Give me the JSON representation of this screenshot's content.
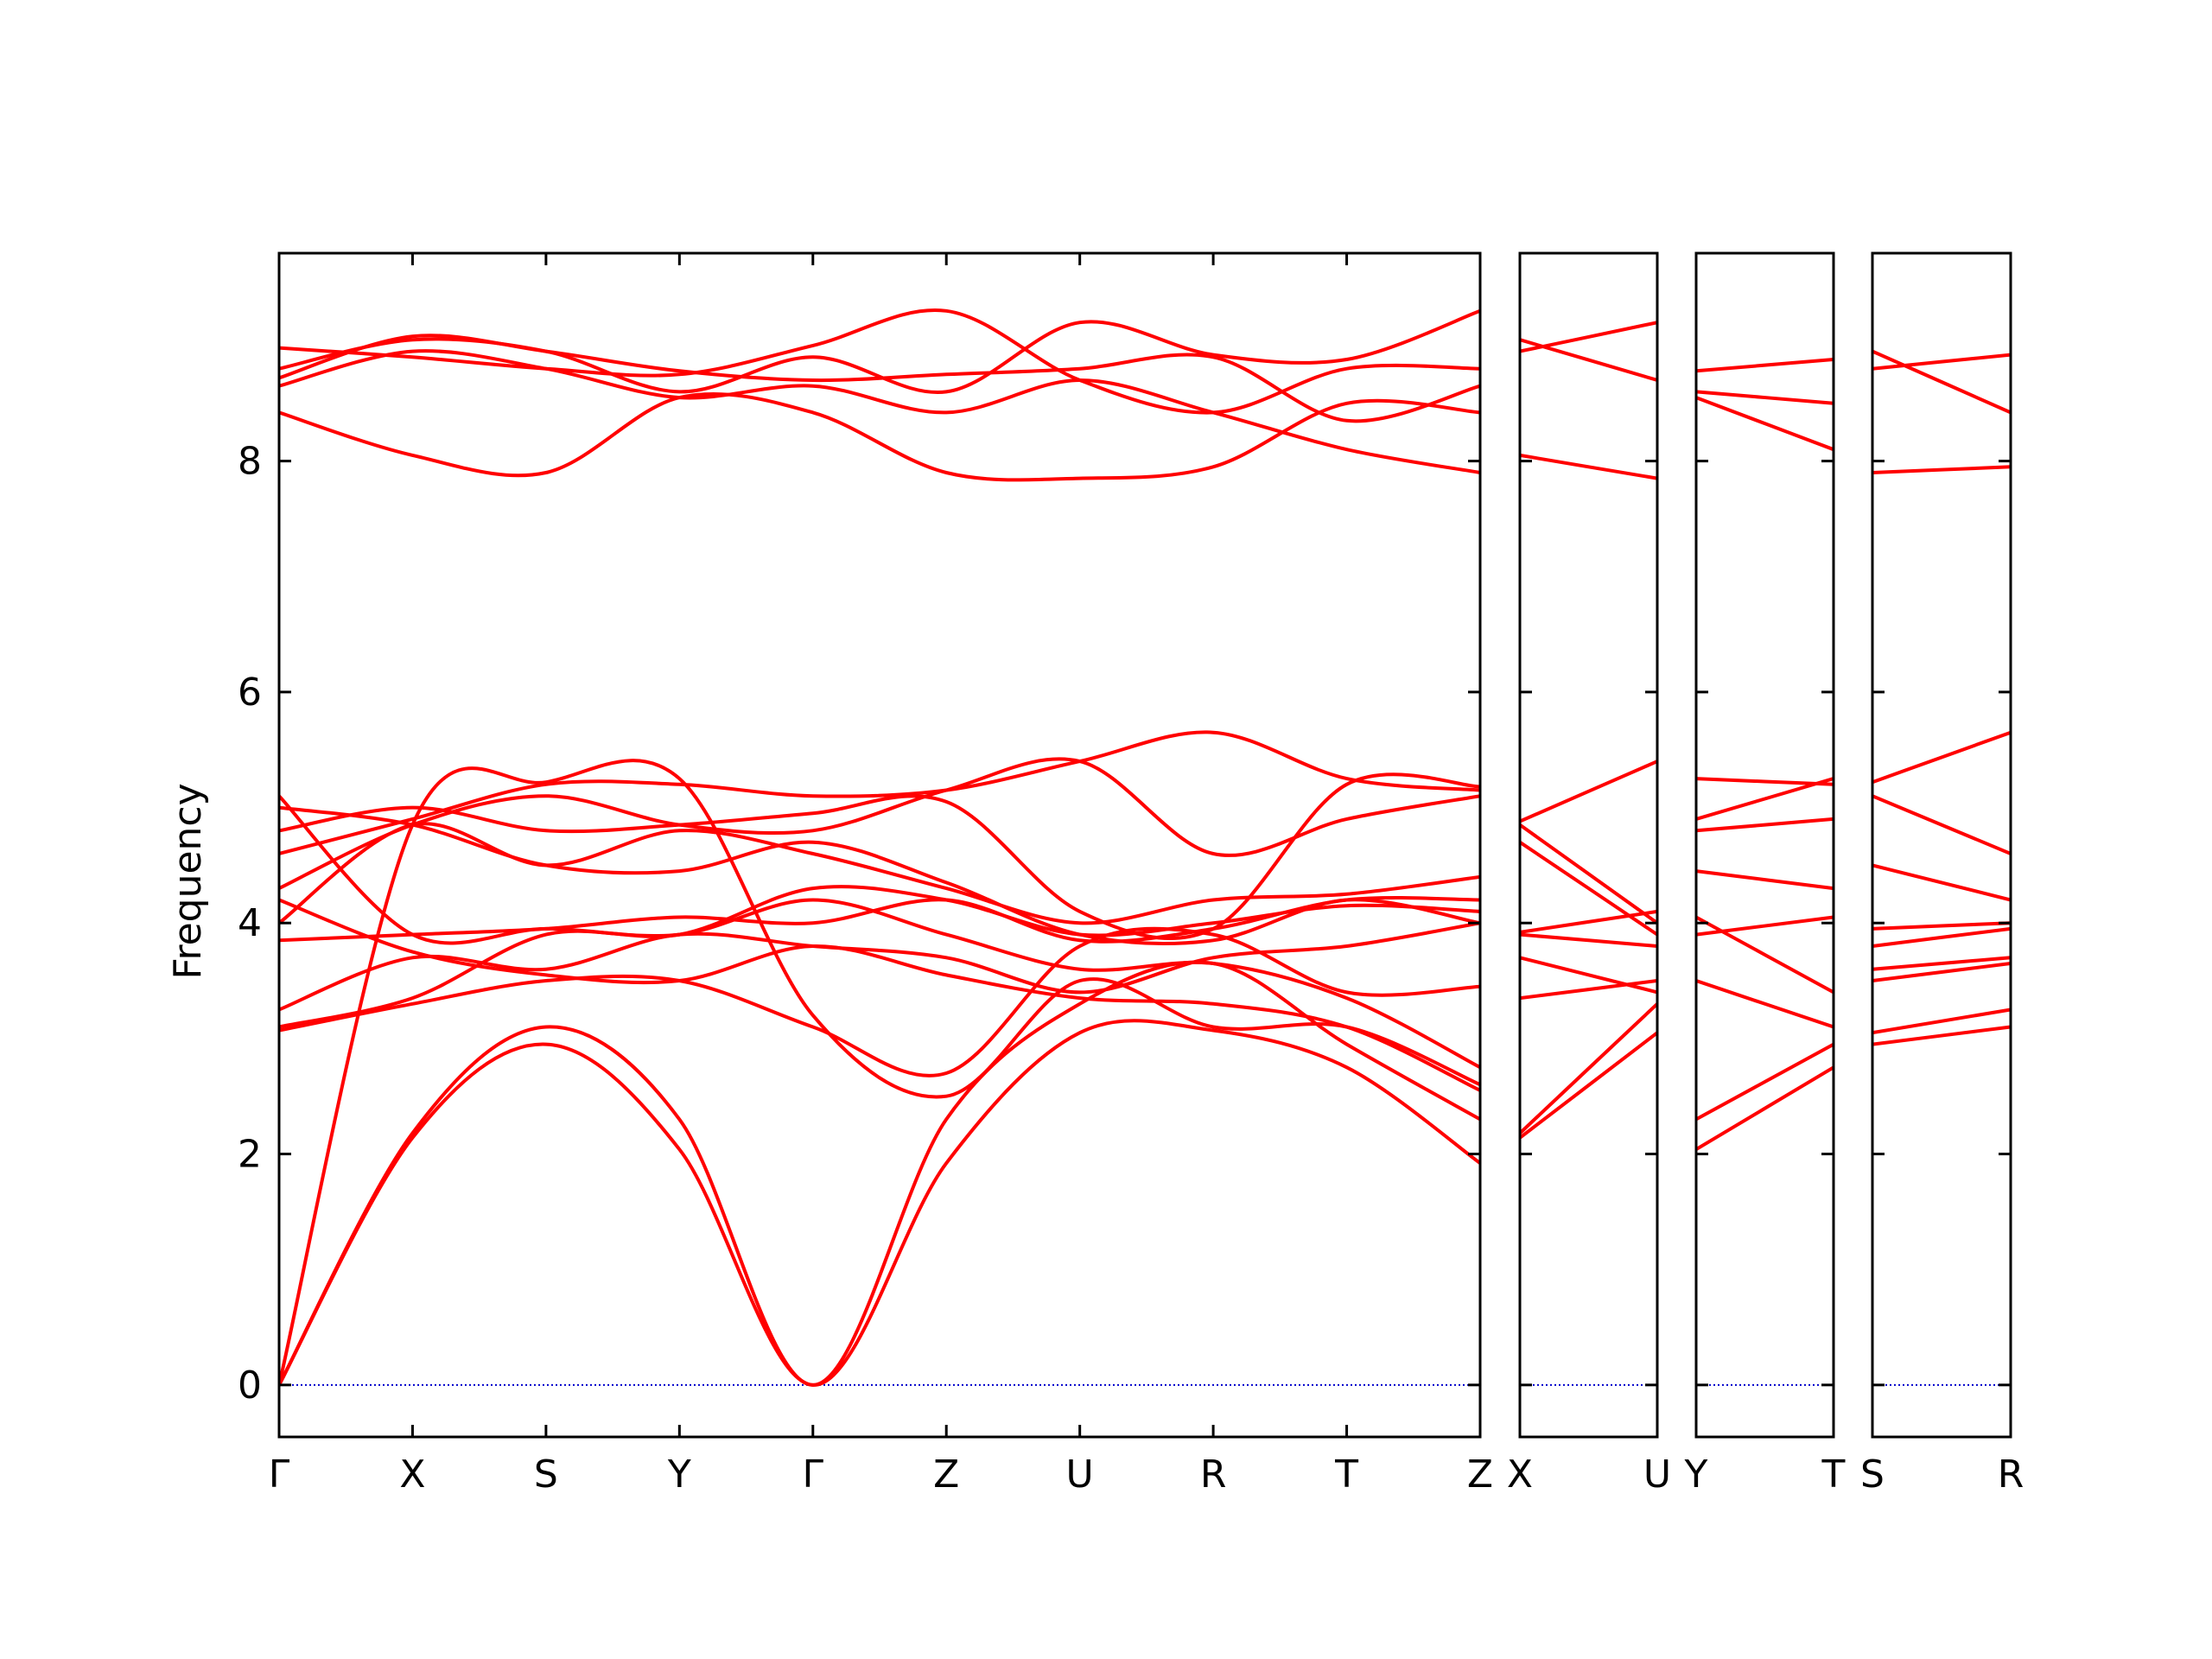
{
  "chart_data": {
    "type": "line",
    "ylabel": "Frequency",
    "ylim": [
      -0.45,
      9.8
    ],
    "yticks": [
      0,
      2,
      4,
      6,
      8
    ],
    "grid": false,
    "legend": "none",
    "colors": {
      "bands": "#ff0000",
      "zero_line": "#0000cc",
      "axes": "#000000"
    },
    "panels": [
      {
        "labels": [
          "Γ",
          "X",
          "S",
          "Y",
          "Γ",
          "Z",
          "U",
          "R",
          "T",
          "Z"
        ],
        "series": [
          {
            "x": [
              0,
              1,
              2,
              3,
              4,
              5,
              6,
              7,
              8,
              9
            ],
            "y": [
              0.0,
              2.14,
              2.95,
              2.04,
              0.0,
              1.92,
              3.05,
              3.07,
              2.75,
              1.92
            ]
          },
          {
            "x": [
              0,
              1,
              2,
              3,
              4,
              5,
              6,
              7,
              8,
              9
            ],
            "y": [
              0.0,
              2.18,
              3.1,
              2.3,
              0.0,
              2.3,
              3.3,
              3.65,
              2.95,
              2.3
            ]
          },
          {
            "x": [
              0,
              1,
              2,
              3,
              4,
              5,
              6,
              7,
              8,
              9
            ],
            "y": [
              0.0,
              4.85,
              5.22,
              5.25,
              3.2,
              2.5,
              3.5,
              3.1,
              3.1,
              2.6
            ]
          },
          {
            "x": [
              0,
              1,
              2,
              3,
              4,
              5,
              6,
              7,
              8,
              9
            ],
            "y": [
              3.07,
              3.3,
              3.5,
              3.5,
              3.1,
              2.7,
              3.8,
              3.9,
              3.4,
              3.45
            ]
          },
          {
            "x": [
              0,
              1,
              2,
              3,
              4,
              5,
              6,
              7,
              8,
              9
            ],
            "y": [
              3.25,
              3.7,
              3.6,
              3.9,
              3.8,
              3.7,
              3.4,
              3.7,
              3.8,
              4.0
            ]
          },
          {
            "x": [
              0,
              1,
              2,
              3,
              4,
              5,
              6,
              7,
              8,
              9
            ],
            "y": [
              3.85,
              3.9,
              3.95,
              4.05,
              4.0,
              4.2,
              3.85,
              3.95,
              4.2,
              4.2
            ]
          },
          {
            "x": [
              0,
              1,
              2,
              3,
              4,
              5,
              6,
              7,
              8,
              9
            ],
            "y": [
              4.0,
              4.85,
              4.5,
              4.8,
              4.6,
              4.3,
              4.0,
              4.2,
              4.25,
              4.4
            ]
          },
          {
            "x": [
              0,
              1,
              2,
              3,
              4,
              5,
              6,
              7,
              8,
              9
            ],
            "y": [
              4.3,
              4.85,
              5.1,
              4.85,
              4.8,
              5.15,
              5.4,
              4.6,
              4.9,
              5.1
            ]
          },
          {
            "x": [
              0,
              1,
              2,
              3,
              4,
              5,
              6,
              7,
              8,
              9
            ],
            "y": [
              4.6,
              4.9,
              5.2,
              5.2,
              5.1,
              5.15,
              5.4,
              5.65,
              5.25,
              5.15
            ]
          },
          {
            "x": [
              0,
              1,
              2,
              3,
              4,
              5,
              6,
              7,
              8,
              9
            ],
            "y": [
              4.8,
              5.0,
              4.8,
              4.85,
              4.95,
              5.05,
              4.1,
              3.95,
              5.2,
              5.18
            ]
          },
          {
            "x": [
              0,
              1,
              2,
              3,
              4,
              5,
              6,
              7,
              8,
              9
            ],
            "y": [
              5.0,
              4.85,
              4.5,
              4.45,
              4.7,
              4.35,
              3.9,
              3.85,
              4.2,
              4.0
            ]
          },
          {
            "x": [
              0,
              1,
              2,
              3,
              4,
              5,
              6,
              7,
              8,
              9
            ],
            "y": [
              5.1,
              3.9,
              3.95,
              3.9,
              4.2,
              3.9,
              3.6,
              3.65,
              3.35,
              2.75
            ]
          },
          {
            "x": [
              0,
              1,
              2,
              3,
              4,
              5,
              6,
              7,
              8,
              9
            ],
            "y": [
              4.2,
              3.75,
              3.55,
              3.5,
              3.8,
              3.55,
              3.35,
              3.3,
              3.1,
              2.55
            ]
          },
          {
            "x": [
              0,
              1,
              2,
              3,
              4,
              5,
              6,
              7,
              8,
              9
            ],
            "y": [
              3.1,
              3.35,
              3.9,
              3.9,
              4.3,
              4.2,
              3.9,
              4.0,
              4.15,
              4.1
            ]
          },
          {
            "x": [
              0,
              1,
              2,
              3,
              4,
              5,
              6,
              7,
              8,
              9
            ],
            "y": [
              8.42,
              8.05,
              7.9,
              8.55,
              8.42,
              7.9,
              7.85,
              7.95,
              8.5,
              8.42
            ]
          },
          {
            "x": [
              0,
              1,
              2,
              3,
              4,
              5,
              6,
              7,
              8,
              9
            ],
            "y": [
              8.65,
              8.95,
              8.8,
              8.55,
              8.65,
              8.42,
              8.7,
              8.42,
              8.1,
              7.9
            ]
          },
          {
            "x": [
              0,
              1,
              2,
              3,
              4,
              5,
              6,
              7,
              8,
              9
            ],
            "y": [
              8.8,
              9.05,
              8.95,
              8.6,
              8.9,
              8.6,
              9.2,
              8.92,
              8.88,
              9.3
            ]
          },
          {
            "x": [
              0,
              1,
              2,
              3,
              4,
              5,
              6,
              7,
              8,
              9
            ],
            "y": [
              8.98,
              8.9,
              8.8,
              8.75,
              9.0,
              9.3,
              8.7,
              8.42,
              8.8,
              8.8
            ]
          },
          {
            "x": [
              0,
              1,
              2,
              3,
              4,
              5,
              6,
              7,
              8,
              9
            ],
            "y": [
              8.72,
              9.08,
              8.95,
              8.78,
              8.7,
              8.75,
              8.8,
              8.9,
              8.35,
              8.65
            ]
          }
        ]
      },
      {
        "labels": [
          "X",
          "U"
        ],
        "series": [
          {
            "x": [
              0,
              1
            ],
            "y": [
              2.14,
              3.05
            ]
          },
          {
            "x": [
              0,
              1
            ],
            "y": [
              2.18,
              3.3
            ]
          },
          {
            "x": [
              0,
              1
            ],
            "y": [
              3.35,
              3.5
            ]
          },
          {
            "x": [
              0,
              1
            ],
            "y": [
              3.7,
              3.4
            ]
          },
          {
            "x": [
              0,
              1
            ],
            "y": [
              3.9,
              3.8
            ]
          },
          {
            "x": [
              0,
              1
            ],
            "y": [
              3.92,
              4.1
            ]
          },
          {
            "x": [
              0,
              1
            ],
            "y": [
              4.85,
              4.0
            ]
          },
          {
            "x": [
              0,
              1
            ],
            "y": [
              4.7,
              3.9
            ]
          },
          {
            "x": [
              0,
              1
            ],
            "y": [
              4.88,
              5.4
            ]
          },
          {
            "x": [
              0,
              1
            ],
            "y": [
              8.05,
              7.85
            ]
          },
          {
            "x": [
              0,
              1
            ],
            "y": [
              8.95,
              9.2
            ]
          },
          {
            "x": [
              0,
              1
            ],
            "y": [
              9.05,
              8.7
            ]
          }
        ]
      },
      {
        "labels": [
          "Y",
          "T"
        ],
        "series": [
          {
            "x": [
              0,
              1
            ],
            "y": [
              2.04,
              2.75
            ]
          },
          {
            "x": [
              0,
              1
            ],
            "y": [
              2.3,
              2.95
            ]
          },
          {
            "x": [
              0,
              1
            ],
            "y": [
              3.5,
              3.1
            ]
          },
          {
            "x": [
              0,
              1
            ],
            "y": [
              3.9,
              4.05
            ]
          },
          {
            "x": [
              0,
              1
            ],
            "y": [
              4.05,
              3.4
            ]
          },
          {
            "x": [
              0,
              1
            ],
            "y": [
              4.45,
              4.3
            ]
          },
          {
            "x": [
              0,
              1
            ],
            "y": [
              4.8,
              4.9
            ]
          },
          {
            "x": [
              0,
              1
            ],
            "y": [
              4.9,
              5.25
            ]
          },
          {
            "x": [
              0,
              1
            ],
            "y": [
              5.25,
              5.2
            ]
          },
          {
            "x": [
              0,
              1
            ],
            "y": [
              8.55,
              8.1
            ]
          },
          {
            "x": [
              0,
              1
            ],
            "y": [
              8.6,
              8.5
            ]
          },
          {
            "x": [
              0,
              1
            ],
            "y": [
              8.78,
              8.88
            ]
          }
        ]
      },
      {
        "labels": [
          "S",
          "R"
        ],
        "series": [
          {
            "x": [
              0,
              1
            ],
            "y": [
              2.95,
              3.1
            ]
          },
          {
            "x": [
              0,
              1
            ],
            "y": [
              3.05,
              3.25
            ]
          },
          {
            "x": [
              0,
              1
            ],
            "y": [
              3.5,
              3.65
            ]
          },
          {
            "x": [
              0,
              1
            ],
            "y": [
              3.6,
              3.7
            ]
          },
          {
            "x": [
              0,
              1
            ],
            "y": [
              3.8,
              3.95
            ]
          },
          {
            "x": [
              0,
              1
            ],
            "y": [
              3.95,
              4.0
            ]
          },
          {
            "x": [
              0,
              1
            ],
            "y": [
              4.5,
              4.2
            ]
          },
          {
            "x": [
              0,
              1
            ],
            "y": [
              5.1,
              4.6
            ]
          },
          {
            "x": [
              0,
              1
            ],
            "y": [
              5.22,
              5.65
            ]
          },
          {
            "x": [
              0,
              1
            ],
            "y": [
              7.9,
              7.95
            ]
          },
          {
            "x": [
              0,
              1
            ],
            "y": [
              8.8,
              8.92
            ]
          },
          {
            "x": [
              0,
              1
            ],
            "y": [
              8.95,
              8.42
            ]
          }
        ]
      }
    ]
  }
}
